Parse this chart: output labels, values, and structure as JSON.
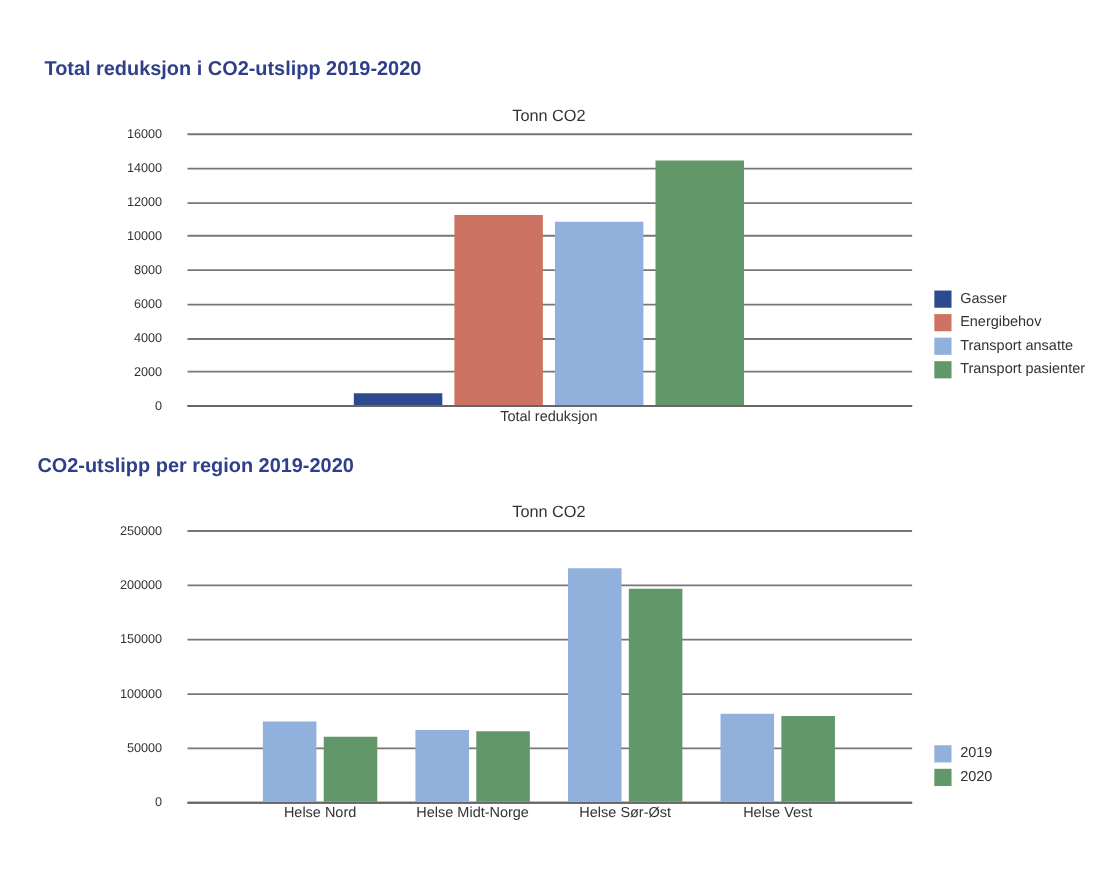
{
  "chart_data": [
    {
      "type": "bar",
      "title": "Total reduksjon i CO2-utslipp 2019-2020",
      "subtitle": "Tonn CO2",
      "categories": [
        "Total reduksjon"
      ],
      "series": [
        {
          "name": "Gasser",
          "color": "#2e4a8f",
          "values": [
            700
          ]
        },
        {
          "name": "Energibehov",
          "color": "#cc7363",
          "values": [
            11200
          ]
        },
        {
          "name": "Transport ansatte",
          "color": "#92b0dc",
          "values": [
            10800
          ]
        },
        {
          "name": "Transport pasienter",
          "color": "#62976a",
          "values": [
            14400
          ]
        }
      ],
      "ylim": [
        0,
        16000
      ],
      "yticks": [
        0,
        2000,
        4000,
        6000,
        8000,
        10000,
        12000,
        14000,
        16000
      ],
      "grid": "y",
      "legend": "right"
    },
    {
      "type": "bar",
      "title": "CO2-utslipp per region 2019-2020",
      "subtitle": "Tonn CO2",
      "categories": [
        "Helse Nord",
        "Helse Midt-Norge",
        "Helse Sør-Øst",
        "Helse Vest"
      ],
      "series": [
        {
          "name": "2019",
          "color": "#92b0dc",
          "values": [
            74000,
            66000,
            215000,
            81000
          ]
        },
        {
          "name": "2020",
          "color": "#62976a",
          "values": [
            60000,
            65000,
            196000,
            79000
          ]
        }
      ],
      "ylim": [
        0,
        250000
      ],
      "yticks": [
        0,
        50000,
        100000,
        150000,
        200000,
        250000
      ],
      "grid": "y",
      "legend": "right"
    }
  ]
}
